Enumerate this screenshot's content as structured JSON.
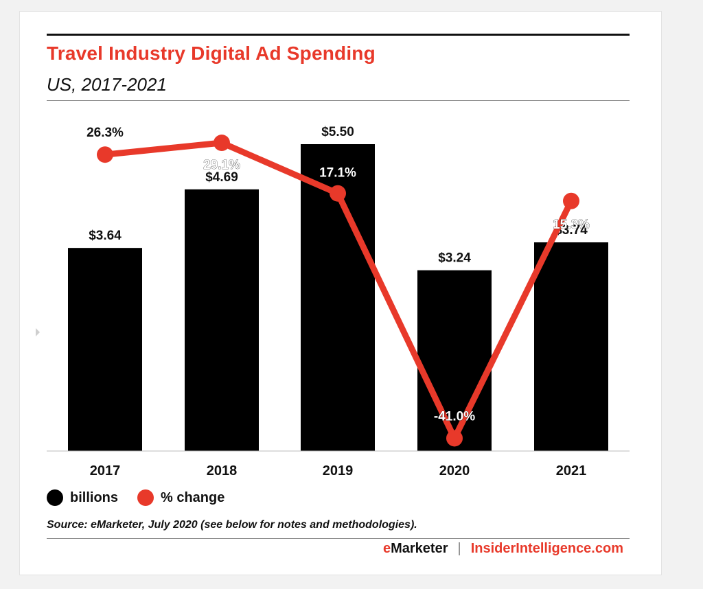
{
  "header": {
    "title": "Travel Industry Digital Ad Spending",
    "subtitle": "US, 2017-2021"
  },
  "chart_data": {
    "type": "bar",
    "title": "Travel Industry Digital Ad Spending",
    "subtitle": "US, 2017-2021",
    "categories": [
      "2017",
      "2018",
      "2019",
      "2020",
      "2021"
    ],
    "series": [
      {
        "name": "billions",
        "type": "bar",
        "values": [
          3.64,
          4.69,
          5.5,
          3.24,
          3.74
        ],
        "labels": [
          "$3.64",
          "$4.69",
          "$5.50",
          "$3.24",
          "$3.74"
        ],
        "color": "#000000"
      },
      {
        "name": "% change",
        "type": "line",
        "values": [
          26.3,
          29.1,
          17.1,
          -41.0,
          15.3
        ],
        "labels": [
          "26.3%",
          "29.1%",
          "17.1%",
          "-41.0%",
          "15.3%"
        ],
        "color": "#e8392a"
      }
    ],
    "legend": "bottom-left",
    "grid": false
  },
  "legend": {
    "billions_label": "billions",
    "change_label": "% change"
  },
  "footer": {
    "source": "Source: eMarketer, July 2020 (see below for notes and methodologies).",
    "brand_e": "e",
    "brand_marketer": "Marketer",
    "separator": "|",
    "brand_site": "InsiderIntelligence.com"
  },
  "colors": {
    "accent": "#e8392a",
    "bar": "#000000"
  }
}
